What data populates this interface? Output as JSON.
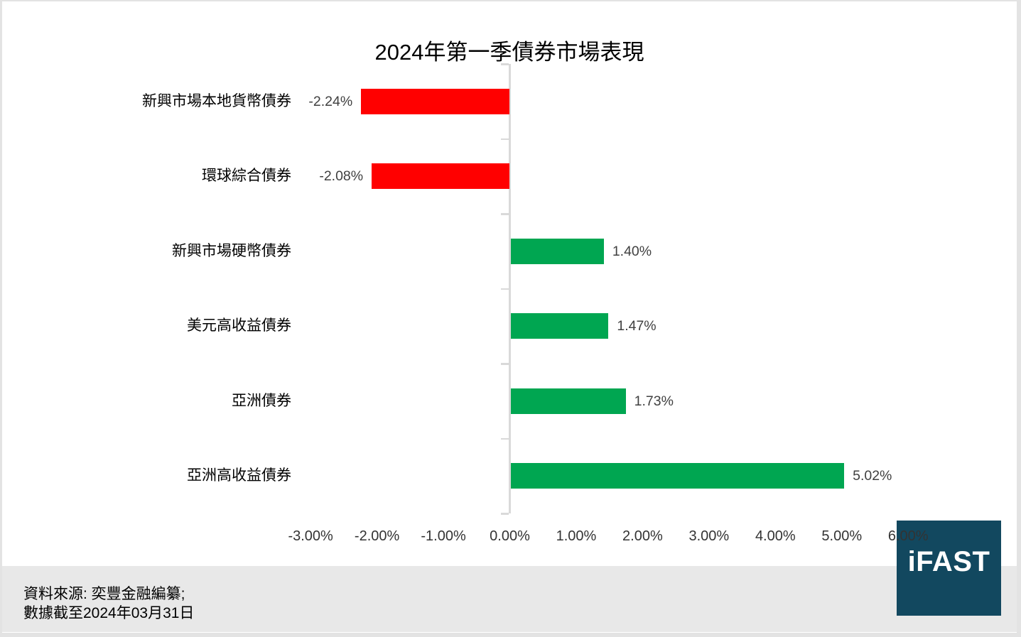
{
  "chart_data": {
    "type": "bar",
    "orientation": "horizontal",
    "title": "2024年第一季債券市場表現",
    "categories": [
      "新興市場本地貨幣債券",
      "環球綜合債券",
      "新興市場硬幣債券",
      "美元高收益債券",
      "亞洲債券",
      "亞洲高收益債券"
    ],
    "values": [
      -2.24,
      -2.08,
      1.4,
      1.47,
      1.73,
      5.02
    ],
    "value_labels": [
      "-2.24%",
      "-2.08%",
      "1.40%",
      "1.47%",
      "1.73%",
      "5.02%"
    ],
    "x_tick_values": [
      -3,
      -2,
      -1,
      0,
      1,
      2,
      3,
      4,
      5,
      6
    ],
    "x_tick_labels": [
      "-3.00%",
      "-2.00%",
      "-1.00%",
      "0.00%",
      "1.00%",
      "2.00%",
      "3.00%",
      "4.00%",
      "5.00%",
      "6.00%"
    ],
    "xlim": [
      -3,
      6.7
    ],
    "xlabel": "",
    "ylabel": "",
    "grid": false,
    "legend": false,
    "colors": {
      "positive": "#00a651",
      "negative": "#ff0000",
      "axis": "#d9d9d9",
      "value_label": "#404040"
    }
  },
  "footer": {
    "source_line1": "資料來源: 奕豐金融編纂;",
    "source_line2": "數據截至2024年03月31日"
  },
  "logo": {
    "text": "iFAST",
    "background": "#12485f",
    "text_color": "#ffffff"
  }
}
